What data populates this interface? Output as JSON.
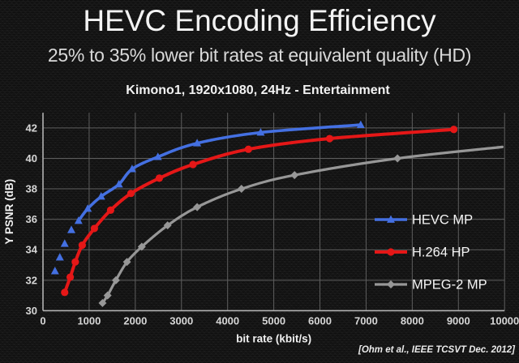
{
  "slide": {
    "title": "HEVC Encoding Efficiency",
    "subtitle": "25% to 35% lower bit rates at equivalent quality (HD)",
    "citation": "[Ohm et al., IEEE TCSVT Dec. 2012]"
  },
  "colors": {
    "background": "#151515",
    "title_text": "#f3f3f3",
    "subtitle_text": "#d9d9d9",
    "grid": "#5e5e5e",
    "axis": "#b2b2b2",
    "tick_label": "#d6d6d6",
    "axis_label": "#f0f0f0",
    "legend_text": "#f5f5f5",
    "hevc_blue": "#4470e2",
    "h264_red": "#e51717",
    "mpeg2_gray": "#979797"
  },
  "chart_data": {
    "type": "line",
    "title": "Kimono1, 1920x1080, 24Hz - Entertainment",
    "xlabel": "bit rate (kbit/s)",
    "ylabel": "Y PSNR (dB)",
    "xlim": [
      0,
      10000
    ],
    "ylim": [
      30,
      43
    ],
    "xticks": [
      0,
      1000,
      2000,
      3000,
      4000,
      5000,
      6000,
      7000,
      8000,
      9000,
      10000
    ],
    "yticks": [
      30,
      32,
      34,
      36,
      38,
      40,
      42
    ],
    "grid": true,
    "legend_position": "right-middle",
    "series": [
      {
        "name": "HEVC MP",
        "marker": "triangle",
        "color_key": "hevc_blue",
        "line_width": 3.6,
        "line_start_index": 4,
        "skip_last_marker": false,
        "points": [
          [
            260,
            32.6
          ],
          [
            365,
            33.5
          ],
          [
            470,
            34.4
          ],
          [
            615,
            35.3
          ],
          [
            770,
            35.9
          ],
          [
            970,
            36.7
          ],
          [
            1260,
            37.5
          ],
          [
            1645,
            38.3
          ],
          [
            1930,
            39.3
          ],
          [
            2490,
            40.1
          ],
          [
            3340,
            41.0
          ],
          [
            4716,
            41.7
          ],
          [
            6884,
            42.2
          ]
        ]
      },
      {
        "name": "H.264 HP",
        "marker": "circle",
        "color_key": "h264_red",
        "line_width": 4,
        "line_start_index": 0,
        "skip_last_marker": false,
        "points": [
          [
            470,
            31.2
          ],
          [
            590,
            32.2
          ],
          [
            700,
            33.2
          ],
          [
            850,
            34.3
          ],
          [
            1114,
            35.4
          ],
          [
            1465,
            36.6
          ],
          [
            1905,
            37.7
          ],
          [
            2520,
            38.7
          ],
          [
            3250,
            39.6
          ],
          [
            4450,
            40.6
          ],
          [
            6210,
            41.3
          ],
          [
            8900,
            41.9
          ]
        ]
      },
      {
        "name": "MPEG-2 MP",
        "marker": "diamond",
        "color_key": "mpeg2_gray",
        "line_width": 3.2,
        "line_start_index": 0,
        "skip_last_marker": true,
        "points": [
          [
            1290,
            30.5
          ],
          [
            1400,
            31.0
          ],
          [
            1580,
            32.0
          ],
          [
            1820,
            33.2
          ],
          [
            2140,
            34.2
          ],
          [
            2700,
            35.6
          ],
          [
            3340,
            36.8
          ],
          [
            4300,
            38.0
          ],
          [
            5450,
            38.9
          ],
          [
            7680,
            40.0
          ],
          [
            9950,
            40.75
          ]
        ]
      }
    ]
  }
}
